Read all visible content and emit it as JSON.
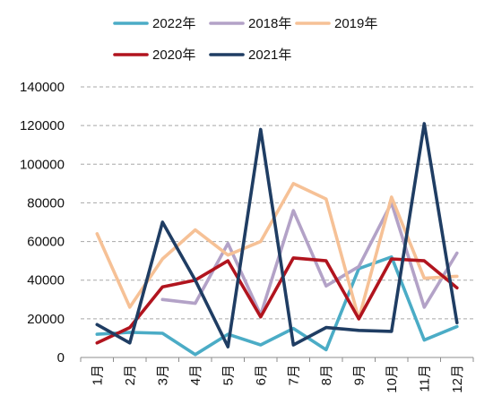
{
  "chart_data": {
    "type": "line",
    "title": "",
    "xlabel": "",
    "ylabel": "",
    "ylim": [
      0,
      140000
    ],
    "yticks": [
      0,
      20000,
      40000,
      60000,
      80000,
      100000,
      120000,
      140000
    ],
    "ytick_labels": [
      "0",
      "20000",
      "40000",
      "60000",
      "80000",
      "100000",
      "120000",
      "140000"
    ],
    "grid": "horizontal dashed",
    "legend_position": "top",
    "categories": [
      "1月",
      "2月",
      "3月",
      "4月",
      "5月",
      "6月",
      "7月",
      "8月",
      "9月",
      "10月",
      "11月",
      "12月"
    ],
    "series": [
      {
        "name": "2022年",
        "color": "#4bacc6",
        "values": [
          12000,
          13000,
          12500,
          1500,
          12000,
          6500,
          15000,
          4000,
          46000,
          52000,
          9000,
          16000
        ]
      },
      {
        "name": "2018年",
        "color": "#b3a2c7",
        "values": [
          null,
          null,
          30000,
          28000,
          59000,
          22000,
          76000,
          37000,
          47000,
          80000,
          26000,
          54000
        ]
      },
      {
        "name": "2019年",
        "color": "#f6c196",
        "values": [
          64000,
          26000,
          51000,
          66000,
          53000,
          60000,
          90000,
          82000,
          20000,
          83000,
          41000,
          42000
        ]
      },
      {
        "name": "2020年",
        "color": "#b1141e",
        "values": [
          7500,
          15500,
          36500,
          40000,
          50000,
          21000,
          51500,
          50000,
          20000,
          51000,
          50000,
          36000
        ]
      },
      {
        "name": "2021年",
        "color": "#1f3d63",
        "values": [
          17000,
          7500,
          70000,
          40000,
          5500,
          118000,
          6500,
          15500,
          14000,
          13500,
          121000,
          18000
        ]
      }
    ]
  }
}
